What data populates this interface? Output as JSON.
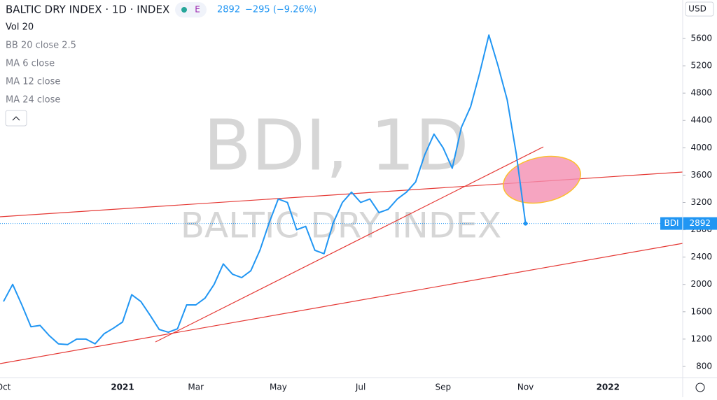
{
  "chart_data": {
    "type": "line",
    "title": "BALTIC DRY INDEX · 1D · INDEX",
    "badge": "E",
    "change": "−295 (−9.26%)",
    "currency": "USD",
    "watermark": "BDI, 1D",
    "watermark_subtitle": "BALTIC DRY INDEX",
    "indicators": [
      "Vol 20",
      "BB 20 close 2.5",
      "MA 6 close",
      "MA 12 close",
      "MA 24 close"
    ],
    "categories": [
      "Oct",
      null,
      null,
      null,
      null,
      null,
      null,
      null,
      null,
      null,
      null,
      null,
      null,
      "2021",
      null,
      null,
      null,
      null,
      null,
      null,
      null,
      "Mar",
      null,
      null,
      null,
      null,
      null,
      null,
      null,
      null,
      "May",
      null,
      null,
      null,
      null,
      null,
      null,
      null,
      null,
      "Jul",
      null,
      null,
      null,
      null,
      null,
      null,
      null,
      null,
      "Sep",
      null,
      null,
      null,
      null,
      null,
      null,
      null,
      null,
      "Nov",
      null,
      null,
      null,
      null,
      null,
      null,
      null,
      null,
      "2022",
      null,
      null,
      null,
      null,
      null,
      null,
      null,
      null
    ],
    "series": [
      {
        "name": "BDI",
        "color": "#2196f3",
        "values": [
          1750,
          2000,
          1700,
          1380,
          1400,
          1250,
          1130,
          1120,
          1200,
          1200,
          1130,
          1280,
          1360,
          1450,
          1850,
          1750,
          1550,
          1340,
          1300,
          1350,
          1700,
          1700,
          1800,
          2000,
          2300,
          2150,
          2100,
          2200,
          2500,
          2900,
          3250,
          3200,
          2800,
          2850,
          2500,
          2450,
          2900,
          3200,
          3350,
          3200,
          3250,
          3050,
          3100,
          3250,
          3350,
          3500,
          3900,
          4200,
          4000,
          3700,
          4300,
          4600,
          5100,
          5650,
          5200,
          4700,
          3900,
          2892,
          null,
          null,
          null,
          null,
          null,
          null,
          null,
          null,
          null,
          null,
          null,
          null,
          null,
          null,
          null,
          null,
          null
        ]
      }
    ],
    "ylim": [
      636,
      6163
    ],
    "yticks": [
      800,
      1200,
      1600,
      2000,
      2400,
      2800,
      3200,
      3600,
      4000,
      4400,
      4800,
      5200,
      5600
    ],
    "grid": false
  }
}
